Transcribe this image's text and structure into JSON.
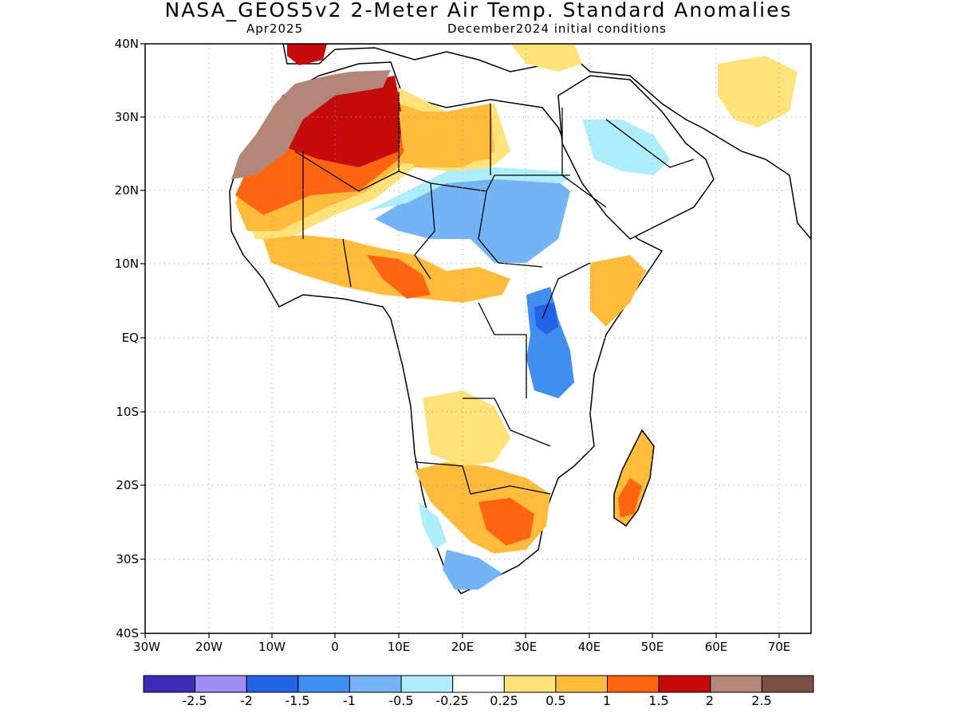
{
  "header": {
    "title": "NASA_GEOS5v2 2-Meter Air Temp. Standard Anomalies",
    "period": "Apr2025",
    "conditions": "December2024 initial conditions"
  },
  "axes": {
    "y_labels": [
      "40N",
      "30N",
      "20N",
      "10N",
      "EQ",
      "10S",
      "20S",
      "30S",
      "40S"
    ],
    "x_labels": [
      "30W",
      "20W",
      "10W",
      "0",
      "10E",
      "20E",
      "30E",
      "40E",
      "50E",
      "60E",
      "70E"
    ]
  },
  "colorbar": {
    "colors": [
      "#3d2cb8",
      "#9f8cf4",
      "#2463e6",
      "#3f8ef0",
      "#74b4f6",
      "#aeeefa",
      "#ffffff",
      "#ffe27a",
      "#ffbc3c",
      "#ff6410",
      "#c40a0a",
      "#b4867a",
      "#7a5044"
    ],
    "labels": [
      "-2.5",
      "-2",
      "-1.5",
      "-1",
      "-0.5",
      "-0.25",
      "0.25",
      "0.5",
      "1",
      "1.5",
      "2",
      "2.5"
    ]
  }
}
